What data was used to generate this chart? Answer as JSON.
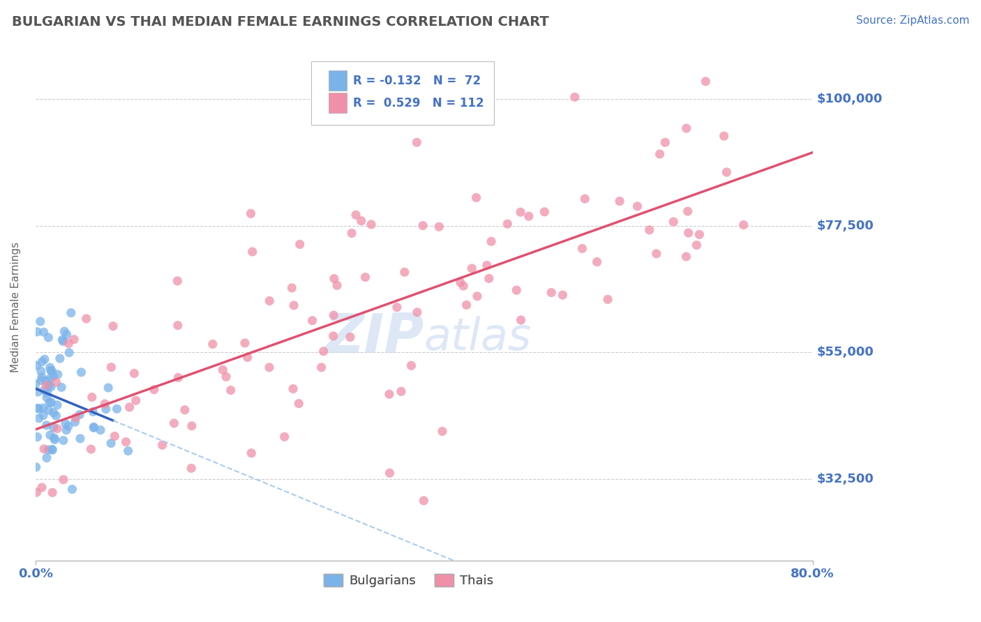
{
  "title": "BULGARIAN VS THAI MEDIAN FEMALE EARNINGS CORRELATION CHART",
  "source": "Source: ZipAtlas.com",
  "ylabel": "Median Female Earnings",
  "yticks": [
    32500,
    55000,
    77500,
    100000
  ],
  "ytick_labels": [
    "$32,500",
    "$55,000",
    "$77,500",
    "$100,000"
  ],
  "xlim": [
    0.0,
    80.0
  ],
  "ylim": [
    18000,
    108000
  ],
  "legend_bottom": [
    "Bulgarians",
    "Thais"
  ],
  "bulgarian_color": "#7ab3ea",
  "thai_color": "#f090a8",
  "bg_color": "#ffffff",
  "grid_color": "#cccccc",
  "title_color": "#555555",
  "axis_label_color": "#4472c4",
  "bulgarian_R": -0.132,
  "bulgarian_N": 72,
  "thai_R": 0.529,
  "thai_N": 112,
  "bg_trend_color": "#3060c0",
  "bg_trend_dash_color": "#aaccee",
  "thai_trend_color": "#e05070",
  "watermark_color": "#c8d8f0",
  "watermark_alpha": 0.6
}
